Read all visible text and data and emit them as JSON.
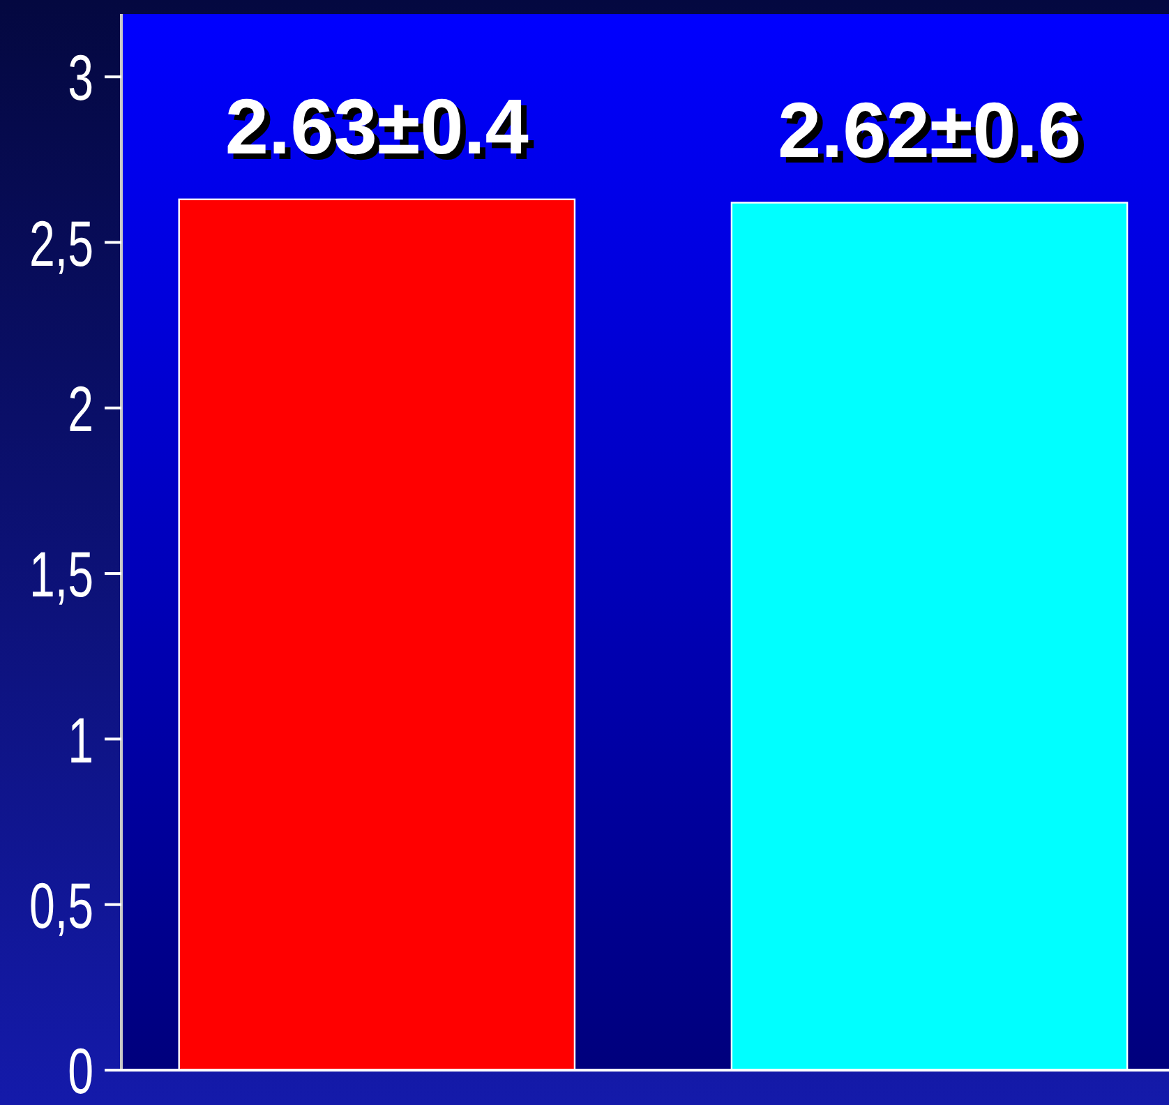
{
  "chart_data": {
    "type": "bar",
    "categories": [
      null,
      null
    ],
    "values": [
      2.63,
      2.62
    ],
    "colors": [
      "#ff0000",
      "#00ffff"
    ],
    "value_labels": [
      "2.63±0.4",
      "2.62±0.6"
    ],
    "ylim": [
      0,
      3.19
    ],
    "yticks": [
      0,
      {
        "value": 0.5,
        "label": "0,5"
      },
      1,
      {
        "value": 1.5,
        "label": "1,5"
      },
      2,
      {
        "value": 2.5,
        "label": "2,5"
      },
      3
    ]
  }
}
